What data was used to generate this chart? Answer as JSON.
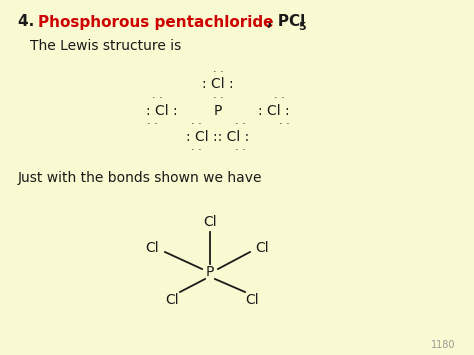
{
  "bg_color": "#FAFAD2",
  "title_number": "4. ",
  "title_red": "Phosphorous pentachloride",
  "title_black": ", PCl",
  "title_subscript": "5",
  "subtitle": "The Lewis structure is",
  "bonds_title": "Just with the bonds shown we have",
  "page_number": "1180",
  "font_color": "#1a1a1a",
  "red_color": "#CC0000",
  "font_size_title": 11,
  "font_size_body": 10,
  "font_size_lewis": 10,
  "font_size_dots": 8
}
